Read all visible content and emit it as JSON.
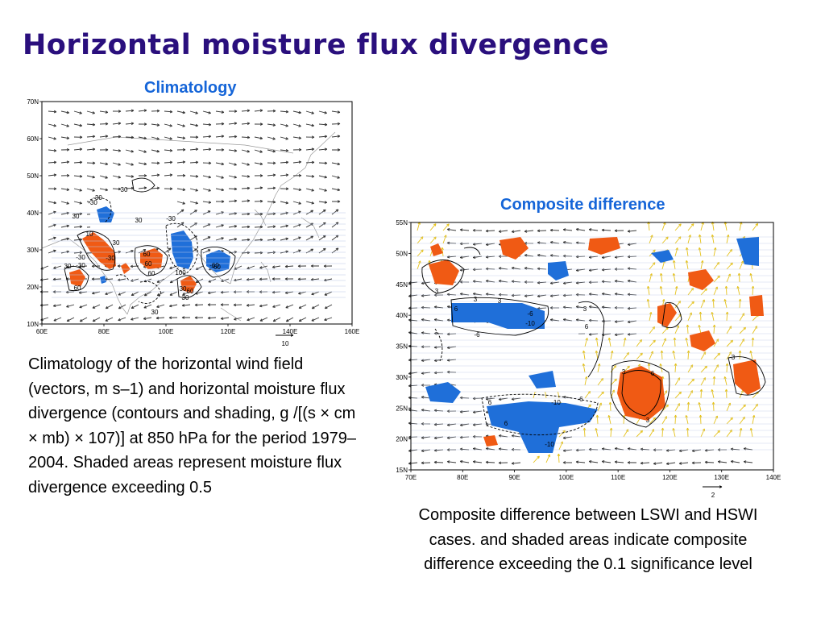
{
  "slide": {
    "title": "Horizontal moisture flux divergence"
  },
  "left_panel": {
    "title": "Climatology",
    "lat_ticks": [
      "70N",
      "60N",
      "50N",
      "40N",
      "30N",
      "20N",
      "10N"
    ],
    "lon_ticks": [
      "60E",
      "80E",
      "100E",
      "120E",
      "140E",
      "160E"
    ],
    "reference_vector": "10",
    "contour_labels": [
      "30",
      "-30",
      "-30",
      "30",
      "-30",
      "30",
      "10",
      "-30",
      "30",
      "30",
      "60",
      "-30",
      "-30",
      "60",
      "60",
      "100",
      "-60",
      "60",
      "-60",
      "30",
      "60",
      "30",
      "30"
    ],
    "caption": "Climatology of the horizontal wind field (vectors, m s–1) and horizontal moisture flux divergence (contours and shading, g /[(s × cm × mb) × 107)] at 850 hPa for the period 1979–2004. Shaded areas represent moisture flux divergence exceeding 0.5"
  },
  "right_panel": {
    "title": "Composite difference",
    "lat_ticks": [
      "55N",
      "50N",
      "45N",
      "40N",
      "35N",
      "30N",
      "25N",
      "20N",
      "15N"
    ],
    "lon_ticks": [
      "70E",
      "80E",
      "90E",
      "100E",
      "110E",
      "120E",
      "130E",
      "140E"
    ],
    "reference_vector": "2",
    "contour_labels": [
      "3",
      "3",
      "6",
      "3",
      "-6",
      "-10",
      "-6",
      "3",
      "6",
      "3",
      "6",
      "3",
      "3",
      "6",
      "-10",
      "6",
      "-6",
      "-10"
    ],
    "caption": "Composite difference between LSWI and HSWI cases. and shaded areas indicate composite difference exceeding the 0.1 significance level"
  },
  "colors": {
    "title": "#2a0f7d",
    "panel_title": "#1565d8",
    "positive_shading": "#f05a14",
    "negative_shading": "#1f6fd9",
    "significant_vector": "#e6c21a",
    "vector": "#333333"
  }
}
